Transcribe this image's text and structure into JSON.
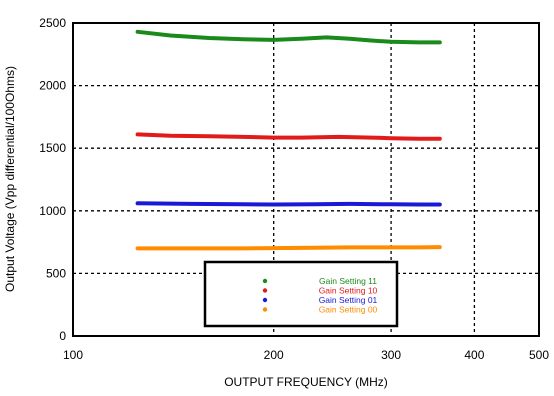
{
  "chart_data": {
    "type": "line",
    "title": "",
    "xlabel": "OUTPUT FREQUENCY (MHz)",
    "ylabel": "Output Voltage (Vpp differential/100Ohms)",
    "x_scale": "log",
    "xlim": [
      100,
      500
    ],
    "ylim": [
      0,
      2500
    ],
    "x_ticks": [
      100,
      200,
      300,
      400,
      500
    ],
    "x_tick_labels": [
      "100",
      "200",
      "300",
      "400",
      "500"
    ],
    "y_ticks": [
      0,
      500,
      1000,
      1500,
      2000,
      2500
    ],
    "y_tick_labels": [
      "0",
      "500",
      "1000",
      "1500",
      "2000",
      "2500"
    ],
    "grid": "dotted",
    "legend_position": "bottom-center",
    "series": [
      {
        "name": "Gain Setting 11",
        "color": "#1a8a1a",
        "points": [
          [
            125,
            2430
          ],
          [
            140,
            2400
          ],
          [
            160,
            2380
          ],
          [
            180,
            2370
          ],
          [
            200,
            2365
          ],
          [
            220,
            2375
          ],
          [
            240,
            2385
          ],
          [
            260,
            2375
          ],
          [
            280,
            2360
          ],
          [
            300,
            2350
          ],
          [
            330,
            2345
          ],
          [
            355,
            2345
          ]
        ]
      },
      {
        "name": "Gain Setting 10",
        "color": "#e21a1a",
        "points": [
          [
            125,
            1610
          ],
          [
            140,
            1600
          ],
          [
            160,
            1595
          ],
          [
            180,
            1590
          ],
          [
            200,
            1585
          ],
          [
            220,
            1585
          ],
          [
            250,
            1590
          ],
          [
            280,
            1585
          ],
          [
            300,
            1580
          ],
          [
            330,
            1575
          ],
          [
            355,
            1575
          ]
        ]
      },
      {
        "name": "Gain Setting 01",
        "color": "#1a1ad6",
        "points": [
          [
            125,
            1060
          ],
          [
            150,
            1055
          ],
          [
            180,
            1052
          ],
          [
            200,
            1050
          ],
          [
            230,
            1052
          ],
          [
            260,
            1055
          ],
          [
            300,
            1052
          ],
          [
            330,
            1050
          ],
          [
            355,
            1050
          ]
        ]
      },
      {
        "name": "Gain Setting 00",
        "color": "#ff8c00",
        "points": [
          [
            125,
            700
          ],
          [
            150,
            700
          ],
          [
            180,
            700
          ],
          [
            200,
            702
          ],
          [
            230,
            705
          ],
          [
            260,
            708
          ],
          [
            300,
            708
          ],
          [
            330,
            708
          ],
          [
            355,
            710
          ]
        ]
      }
    ]
  }
}
